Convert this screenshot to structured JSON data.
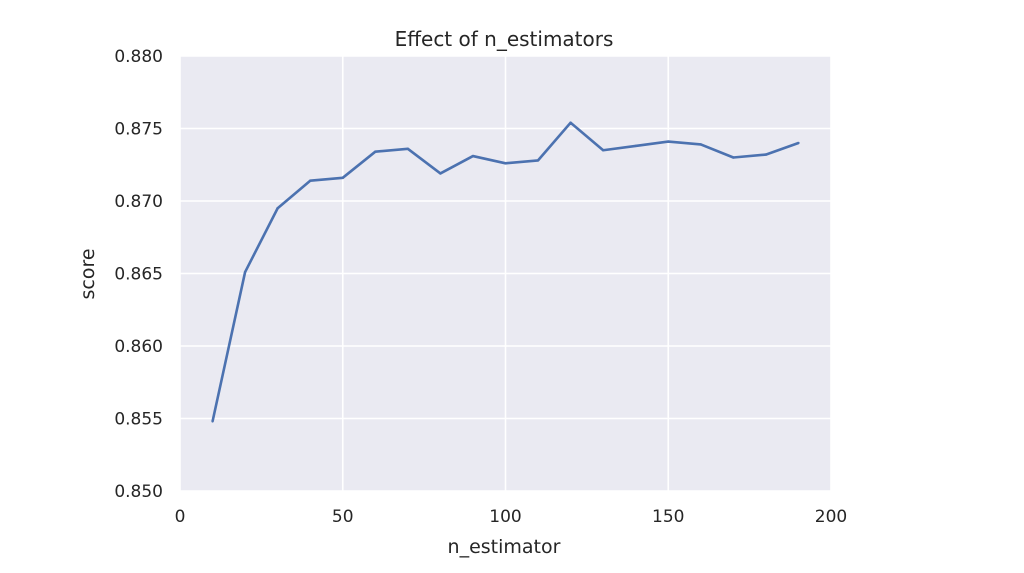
{
  "chart_data": {
    "type": "line",
    "title": "Effect of n_estimators",
    "xlabel": "n_estimator",
    "ylabel": "score",
    "xlim": [
      0,
      200
    ],
    "ylim": [
      0.85,
      0.88
    ],
    "xticks": [
      0,
      50,
      100,
      150,
      200
    ],
    "xtick_labels": [
      "0",
      "50",
      "100",
      "150",
      "200"
    ],
    "yticks": [
      0.85,
      0.855,
      0.86,
      0.865,
      0.87,
      0.875,
      0.88
    ],
    "ytick_labels": [
      "0.850",
      "0.855",
      "0.860",
      "0.865",
      "0.870",
      "0.875",
      "0.880"
    ],
    "grid": true,
    "series": [
      {
        "name": "score",
        "color": "#4c72b0",
        "x": [
          10,
          20,
          30,
          40,
          50,
          60,
          70,
          80,
          90,
          100,
          110,
          120,
          130,
          140,
          150,
          160,
          170,
          180,
          190
        ],
        "y": [
          0.8548,
          0.8651,
          0.8695,
          0.8714,
          0.8716,
          0.8734,
          0.8736,
          0.8719,
          0.8731,
          0.8726,
          0.8728,
          0.8754,
          0.8735,
          0.8738,
          0.8741,
          0.8739,
          0.873,
          0.8732,
          0.874
        ]
      }
    ]
  },
  "colors": {
    "plot_background": "#eaeaf2",
    "grid": "#ffffff",
    "text": "#262626"
  }
}
